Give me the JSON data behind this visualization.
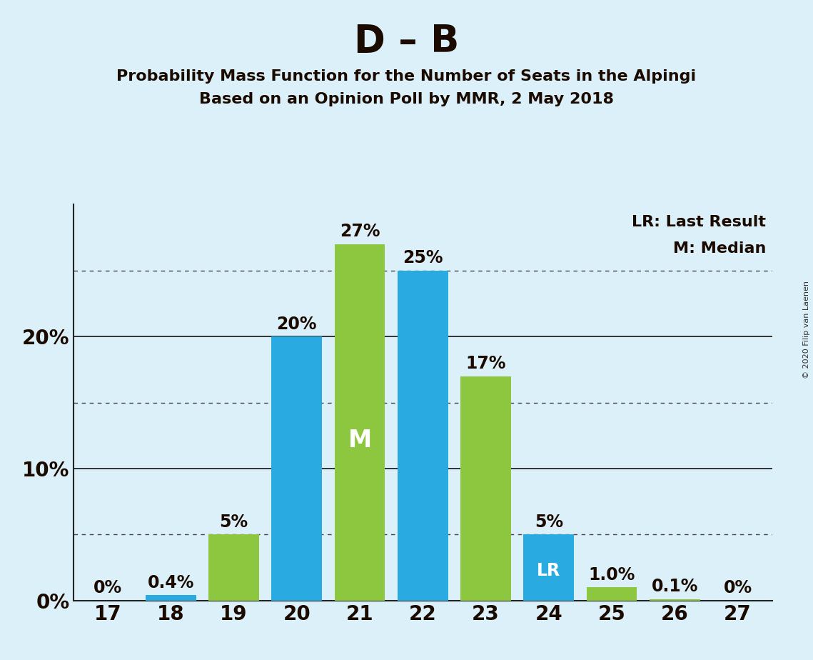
{
  "title": "D – B",
  "subtitle1": "Probability Mass Function for the Number of Seats in the Alpingi",
  "subtitle2": "Based on an Opinion Poll by MMR, 2 May 2018",
  "copyright": "© 2020 Filip van Laenen",
  "legend_lr": "LR: Last Result",
  "legend_m": "M: Median",
  "seats": [
    17,
    18,
    19,
    20,
    21,
    22,
    23,
    24,
    25,
    26,
    27
  ],
  "blue_values": [
    0.0,
    0.4,
    0.0,
    20.0,
    0.0,
    25.0,
    0.0,
    5.0,
    0.0,
    0.0,
    0.0
  ],
  "green_values": [
    0.0,
    0.0,
    5.0,
    0.0,
    27.0,
    0.0,
    17.0,
    0.0,
    1.0,
    0.1,
    0.0
  ],
  "blue_labels": [
    "",
    "0.4%",
    "",
    "20%",
    "",
    "25%",
    "",
    "5%",
    "",
    "",
    ""
  ],
  "green_labels": [
    "0%",
    "",
    "5%",
    "",
    "27%",
    "",
    "17%",
    "",
    "1.0%",
    "0.1%",
    "0%"
  ],
  "lr_seat": 24,
  "median_seat": 21,
  "blue_color": "#29ABE2",
  "green_color": "#8DC63F",
  "background_color": "#DCF0FA",
  "ylim": [
    0,
    30
  ],
  "dotted_lines": [
    5,
    15,
    25
  ],
  "solid_lines": [
    10,
    20
  ],
  "bar_width": 0.8,
  "text_color": "#1a0a00",
  "label_fontsize": 17,
  "tick_fontsize": 20,
  "ytick_positions": [
    0,
    10,
    20
  ],
  "ytick_labels": [
    "0%",
    "10%",
    "20%"
  ]
}
